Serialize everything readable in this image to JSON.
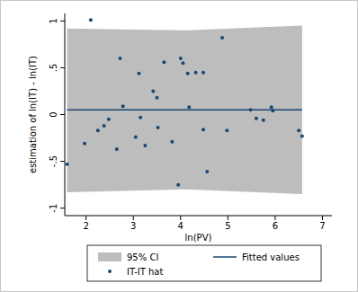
{
  "chart_data": {
    "type": "scatter",
    "x_label": "ln(PV)",
    "y_label": "estimation of ln(IT) - ln(IT)",
    "xlim": [
      1.55,
      7.2
    ],
    "ylim": [
      -1.08,
      1.08
    ],
    "xticks": [
      2,
      3,
      4,
      5,
      6,
      7
    ],
    "yticks": [
      -1,
      {
        "value": -0.5,
        "label": "-.5"
      },
      0,
      {
        "value": 0.5,
        "label": ".5"
      },
      1
    ],
    "grid": false,
    "legend": "bottom",
    "series": [
      {
        "name": "95% CI",
        "type": "area",
        "color": "#bdbdbd",
        "x": [
          1.6,
          4.1,
          6.57
        ],
        "lower": [
          -0.83,
          -0.8,
          -0.85
        ],
        "upper": [
          0.92,
          0.9,
          0.95
        ]
      },
      {
        "name": "Fitted values",
        "type": "line",
        "color": "#1a476f",
        "line_style": "solid",
        "x": [
          1.6,
          4.1,
          6.57
        ],
        "values": [
          0.05,
          0.05,
          0.05
        ]
      },
      {
        "name": "IT-IT hat",
        "type": "scatter",
        "color": "#1a476f",
        "marker": "circle",
        "x": [
          1.6,
          1.97,
          2.1,
          2.25,
          2.38,
          2.48,
          2.65,
          2.72,
          2.78,
          3.05,
          3.12,
          3.15,
          3.25,
          3.42,
          3.5,
          3.52,
          3.65,
          3.82,
          3.95,
          4.0,
          4.05,
          4.15,
          4.18,
          4.32,
          4.48,
          4.48,
          4.56,
          4.88,
          4.98,
          5.48,
          5.6,
          5.75,
          5.92,
          5.95,
          6.5,
          6.57
        ],
        "values": [
          -0.53,
          -0.31,
          1.01,
          -0.17,
          -0.12,
          -0.05,
          -0.37,
          0.6,
          0.09,
          -0.24,
          0.44,
          -0.03,
          -0.33,
          0.25,
          0.18,
          -0.14,
          0.56,
          -0.29,
          -0.75,
          0.6,
          0.55,
          0.44,
          0.08,
          0.45,
          0.45,
          -0.16,
          -0.61,
          0.82,
          -0.17,
          0.05,
          -0.04,
          -0.06,
          0.08,
          0.04,
          -0.17,
          -0.23
        ]
      }
    ]
  }
}
